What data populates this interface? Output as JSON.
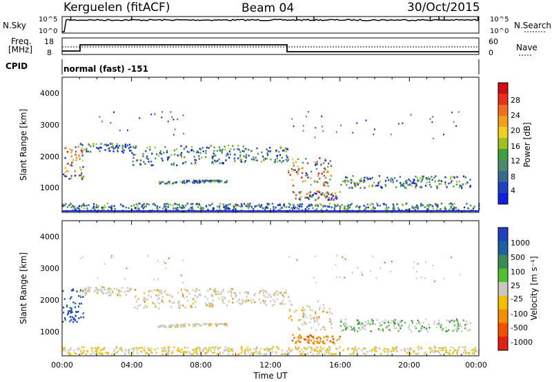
{
  "header": {
    "station": "Kerguelen (fitACF)",
    "beam": "Beam 04",
    "date": "30/Oct/2015"
  },
  "strip_panels": {
    "nsky_label": "N.Sky",
    "nsky_ticks": [
      "10^5",
      "10^0"
    ],
    "nsearch_label": "N.Search",
    "freq_label_line1": "Freq.",
    "freq_label_line2": "[MHz]",
    "freq_ticks": [
      "18",
      "8"
    ],
    "nave_label": "Nave",
    "nave_ticks": [
      "60",
      "0"
    ],
    "cpid_label": "CPID",
    "cpid_value": "normal (fast) -151"
  },
  "chart_data": [
    {
      "type": "heatmap",
      "name": "Power",
      "ylabel": "Slant Range [km]",
      "xlabel": "",
      "y_ticks": [
        "1000",
        "2000",
        "3000",
        "4000"
      ],
      "ylim_km": [
        180,
        4600
      ],
      "colorbar_label": "Power [dB]",
      "colorbar_ticks": [
        "4",
        "8",
        "12",
        "16",
        "20",
        "24",
        "28"
      ],
      "colorbar_colors": [
        "#1020e0",
        "#2040c0",
        "#3a6a8a",
        "#4a8a6a",
        "#40a040",
        "#a0c020",
        "#f0d020",
        "#f0a020",
        "#f07020",
        "#e83020",
        "#d01010"
      ],
      "echo_regions_hours_km": [
        {
          "t0": 0.0,
          "t1": 1.2,
          "r0": 1300,
          "r1": 2400
        },
        {
          "t0": 1.0,
          "t1": 4.0,
          "r0": 2150,
          "r1": 2450
        },
        {
          "t0": 4.0,
          "t1": 9.5,
          "r0": 1750,
          "r1": 2400
        },
        {
          "t0": 5.5,
          "t1": 9.5,
          "r0": 1150,
          "r1": 1250
        },
        {
          "t0": 9.5,
          "t1": 13.0,
          "r0": 1850,
          "r1": 2400
        },
        {
          "t0": 13.0,
          "t1": 15.5,
          "r0": 1050,
          "r1": 2000
        },
        {
          "t0": 13.2,
          "t1": 16.0,
          "r0": 600,
          "r1": 900
        },
        {
          "t0": 16.0,
          "t1": 23.5,
          "r0": 1000,
          "r1": 1400
        },
        {
          "t0": 0.0,
          "t1": 24.0,
          "r0": 250,
          "r1": 500
        }
      ]
    },
    {
      "type": "heatmap",
      "name": "Velocity",
      "ylabel": "Slant Range [km]",
      "xlabel": "Time UT",
      "y_ticks": [
        "1000",
        "2000",
        "3000",
        "4000"
      ],
      "ylim_km": [
        180,
        4600
      ],
      "colorbar_label": "Velocity [m s⁻¹]",
      "colorbar_ticks": [
        "1000",
        "500",
        "100",
        "25",
        "-25",
        "-100",
        "-500",
        "-1000"
      ],
      "colorbar_colors": [
        "#2040c0",
        "#2060a0",
        "#3a8a5a",
        "#50c030",
        "#c8c8c0",
        "#f0c000",
        "#f09000",
        "#f05000",
        "#e02010"
      ],
      "x_ticks": [
        "00:00",
        "04:00",
        "08:00",
        "12:00",
        "16:00",
        "20:00",
        "00:00"
      ]
    }
  ]
}
